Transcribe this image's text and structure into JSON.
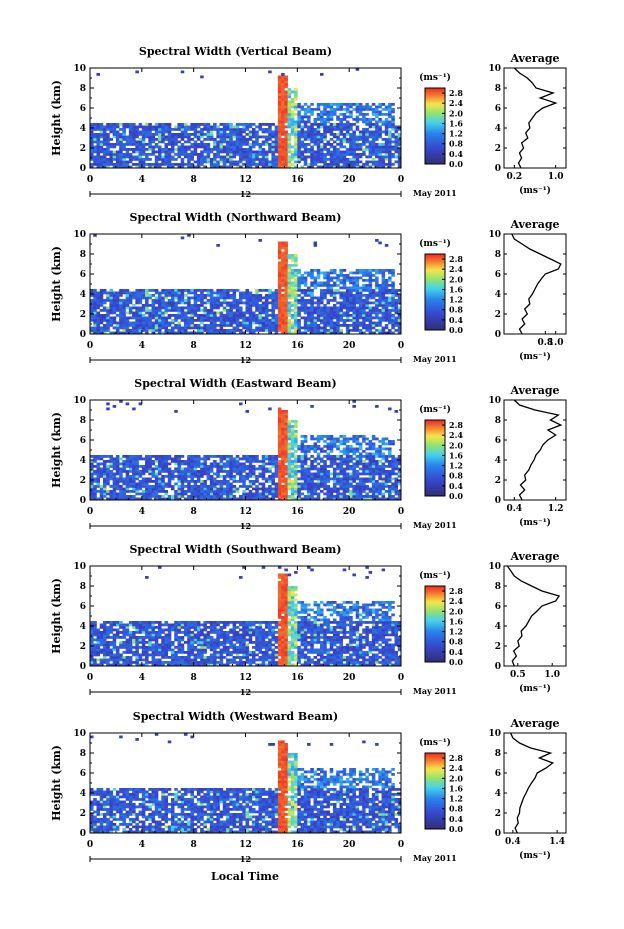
{
  "figure": {
    "xlabel": "Local Time",
    "chart_type": "heatmap",
    "colors": {
      "low": "#3c3c98",
      "blue": "#2f6ee8",
      "cyan": "#4fd5e8",
      "green": "#9fe070",
      "yellow": "#f6e650",
      "red": "#f03a2a"
    }
  },
  "chart_data": [
    {
      "type": "heatmap",
      "title": "Spectral Width (Vertical Beam)",
      "ylabel": "Height (km)",
      "xlim": [
        0,
        24
      ],
      "ylim": [
        0,
        10
      ],
      "x_ticks": [
        "0",
        "4",
        "8",
        "12",
        "16",
        "20",
        "0"
      ],
      "y_ticks": [
        "0",
        "2",
        "4",
        "6",
        "8",
        "10"
      ],
      "date_marker": "12",
      "date_label": "May 2011",
      "colorbar": {
        "unit": "(ms⁻¹)",
        "ticks": [
          "0.0",
          "0.4",
          "0.8",
          "1.2",
          "1.6",
          "2.0",
          "2.4",
          "2.8"
        ],
        "range": [
          0,
          3.0
        ]
      },
      "average": {
        "title": "Average",
        "xlabel": "(ms⁻¹)",
        "xticks": [
          "0.2",
          "1.0"
        ],
        "xlim": [
          0.0,
          1.2
        ],
        "heights": [
          0,
          0.5,
          1,
          1.5,
          2,
          2.5,
          3,
          3.5,
          4,
          4.5,
          5,
          5.5,
          6,
          6.5,
          7,
          7.5,
          8,
          8.5,
          9,
          9.5,
          10
        ],
        "values": [
          0.33,
          0.28,
          0.34,
          0.3,
          0.38,
          0.34,
          0.46,
          0.42,
          0.5,
          0.48,
          0.55,
          0.62,
          0.75,
          1.0,
          0.7,
          0.95,
          0.62,
          0.55,
          0.45,
          0.3,
          0.2
        ]
      }
    },
    {
      "type": "heatmap",
      "title": "Spectral Width (Northward Beam)",
      "ylabel": "Height (km)",
      "xlim": [
        0,
        24
      ],
      "ylim": [
        0,
        10
      ],
      "x_ticks": [
        "0",
        "4",
        "8",
        "12",
        "16",
        "20",
        "0"
      ],
      "y_ticks": [
        "0",
        "2",
        "4",
        "6",
        "8",
        "10"
      ],
      "date_marker": "12",
      "date_label": "May 2011",
      "colorbar": {
        "unit": "(ms⁻¹)",
        "ticks": [
          "0.0",
          "0.4",
          "0.8",
          "1.2",
          "1.6",
          "2.0",
          "2.4",
          "2.8"
        ],
        "range": [
          0,
          3.0
        ]
      },
      "average": {
        "title": "Average",
        "xlabel": "(ms⁻¹)",
        "xticks": [
          "0.8",
          "1.0"
        ],
        "xlim": [
          0.0,
          1.2
        ],
        "heights": [
          0,
          0.5,
          1,
          1.5,
          2,
          2.5,
          3,
          3.5,
          4,
          4.5,
          5,
          5.5,
          6,
          6.5,
          7,
          7.5,
          8,
          8.5,
          9,
          9.5,
          10
        ],
        "values": [
          0.35,
          0.3,
          0.4,
          0.35,
          0.45,
          0.4,
          0.5,
          0.48,
          0.55,
          0.6,
          0.65,
          0.72,
          0.8,
          1.05,
          1.1,
          0.9,
          0.7,
          0.5,
          0.35,
          0.2,
          0.15
        ]
      }
    },
    {
      "type": "heatmap",
      "title": "Spectral Width (Eastward Beam)",
      "ylabel": "Height (km)",
      "xlim": [
        0,
        24
      ],
      "ylim": [
        0,
        10
      ],
      "x_ticks": [
        "0",
        "4",
        "8",
        "12",
        "16",
        "20",
        "0"
      ],
      "y_ticks": [
        "0",
        "2",
        "4",
        "6",
        "8",
        "10"
      ],
      "date_marker": "12",
      "date_label": "May 2011",
      "colorbar": {
        "unit": "(ms⁻¹)",
        "ticks": [
          "0.0",
          "0.4",
          "0.8",
          "1.2",
          "1.6",
          "2.0",
          "2.4",
          "2.8"
        ],
        "range": [
          0,
          3.0
        ]
      },
      "average": {
        "title": "Average",
        "xlabel": "(ms⁻¹)",
        "xticks": [
          "0.4",
          "1.2"
        ],
        "xlim": [
          0.2,
          1.4
        ],
        "heights": [
          0,
          0.5,
          1,
          1.5,
          2,
          2.5,
          3,
          3.5,
          4,
          4.5,
          5,
          5.5,
          6,
          6.5,
          7,
          7.5,
          8,
          8.5,
          9,
          9.5,
          10
        ],
        "values": [
          0.55,
          0.5,
          0.6,
          0.52,
          0.62,
          0.6,
          0.68,
          0.72,
          0.78,
          0.82,
          0.9,
          0.95,
          1.05,
          1.2,
          1.05,
          1.3,
          1.1,
          1.25,
          0.8,
          0.5,
          0.4
        ]
      }
    },
    {
      "type": "heatmap",
      "title": "Spectral Width (Southward Beam)",
      "ylabel": "Height (km)",
      "xlim": [
        0,
        24
      ],
      "ylim": [
        0,
        10
      ],
      "x_ticks": [
        "0",
        "4",
        "8",
        "12",
        "16",
        "20",
        "0"
      ],
      "y_ticks": [
        "0",
        "2",
        "4",
        "6",
        "8",
        "10"
      ],
      "date_marker": "12",
      "date_label": "May 2011",
      "colorbar": {
        "unit": "(ms⁻¹)",
        "ticks": [
          "0.0",
          "0.4",
          "0.8",
          "1.2",
          "1.6",
          "2.0",
          "2.4",
          "2.8"
        ],
        "range": [
          0,
          3.0
        ]
      },
      "average": {
        "title": "Average",
        "xlabel": "(ms⁻¹)",
        "xticks": [
          "0.5",
          "1.0"
        ],
        "xlim": [
          0.3,
          1.2
        ],
        "heights": [
          0,
          0.5,
          1,
          1.5,
          2,
          2.5,
          3,
          3.5,
          4,
          4.5,
          5,
          5.5,
          6,
          6.5,
          7,
          7.5,
          8,
          8.5,
          9,
          9.5,
          10
        ],
        "values": [
          0.45,
          0.42,
          0.48,
          0.44,
          0.52,
          0.5,
          0.56,
          0.55,
          0.62,
          0.66,
          0.7,
          0.78,
          0.85,
          1.05,
          1.1,
          0.85,
          0.7,
          0.55,
          0.45,
          0.4,
          0.35
        ]
      }
    },
    {
      "type": "heatmap",
      "title": "Spectral Width (Westward Beam)",
      "ylabel": "Height (km)",
      "xlim": [
        0,
        24
      ],
      "ylim": [
        0,
        10
      ],
      "x_ticks": [
        "0",
        "4",
        "8",
        "12",
        "16",
        "20",
        "0"
      ],
      "y_ticks": [
        "0",
        "2",
        "4",
        "6",
        "8",
        "10"
      ],
      "date_marker": "12",
      "date_label": "May 2011",
      "colorbar": {
        "unit": "(ms⁻¹)",
        "ticks": [
          "0.0",
          "0.4",
          "0.8",
          "1.2",
          "1.6",
          "2.0",
          "2.4",
          "2.8"
        ],
        "range": [
          0,
          3.0
        ]
      },
      "average": {
        "title": "Average",
        "xlabel": "(ms⁻¹)",
        "xticks": [
          "0.4",
          "1.4"
        ],
        "xlim": [
          0.2,
          1.6
        ],
        "heights": [
          0,
          0.5,
          1,
          1.5,
          2,
          2.5,
          3,
          3.5,
          4,
          4.5,
          5,
          5.5,
          6,
          6.5,
          7,
          7.5,
          8,
          8.5,
          9,
          9.5,
          10
        ],
        "values": [
          0.5,
          0.45,
          0.52,
          0.5,
          0.55,
          0.56,
          0.6,
          0.64,
          0.7,
          0.75,
          0.82,
          0.9,
          0.95,
          1.15,
          1.3,
          1.0,
          1.25,
          0.8,
          0.55,
          0.4,
          0.35
        ]
      }
    }
  ]
}
